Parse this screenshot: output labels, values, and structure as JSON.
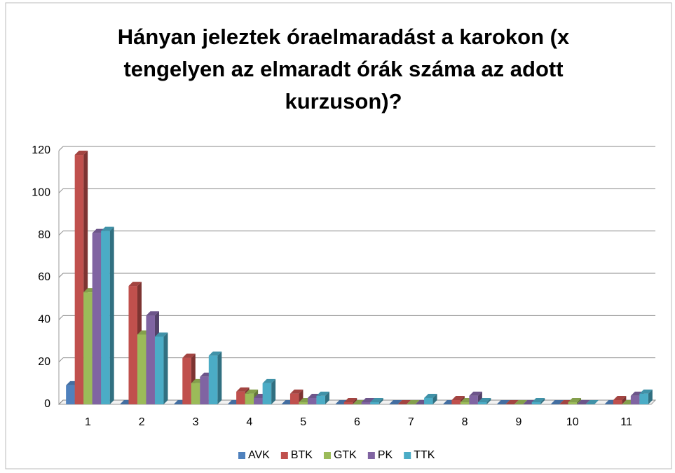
{
  "chart_data": {
    "type": "bar",
    "title": "Hányan jeleztek óraelmaradást a karokon (x tengelyen az elmaradt órák száma az adott kurzuson)?",
    "categories": [
      "1",
      "2",
      "3",
      "4",
      "5",
      "6",
      "7",
      "8",
      "9",
      "10",
      "11"
    ],
    "series": [
      {
        "name": "AVK",
        "color": "#4f81bd",
        "values": [
          9,
          0,
          0,
          0,
          0,
          0,
          0,
          0,
          0,
          0,
          0
        ]
      },
      {
        "name": "BTK",
        "color": "#c0504d",
        "values": [
          118,
          56,
          22,
          6,
          5,
          1,
          0,
          2,
          0,
          0,
          2
        ]
      },
      {
        "name": "GTK",
        "color": "#9bbb59",
        "values": [
          53,
          33,
          10,
          5,
          1,
          0,
          0,
          1,
          0,
          1,
          0
        ]
      },
      {
        "name": "PK",
        "color": "#8064a2",
        "values": [
          81,
          42,
          13,
          3,
          3,
          1,
          0,
          4,
          0,
          0,
          4
        ]
      },
      {
        "name": "TTK",
        "color": "#4bacc6",
        "values": [
          82,
          32,
          23,
          10,
          4,
          1,
          3,
          1,
          1,
          0,
          5
        ]
      }
    ],
    "ylim": [
      0,
      120
    ],
    "yticks": [
      0,
      20,
      40,
      60,
      80,
      100,
      120
    ],
    "grid": true,
    "legend": "bottom"
  }
}
